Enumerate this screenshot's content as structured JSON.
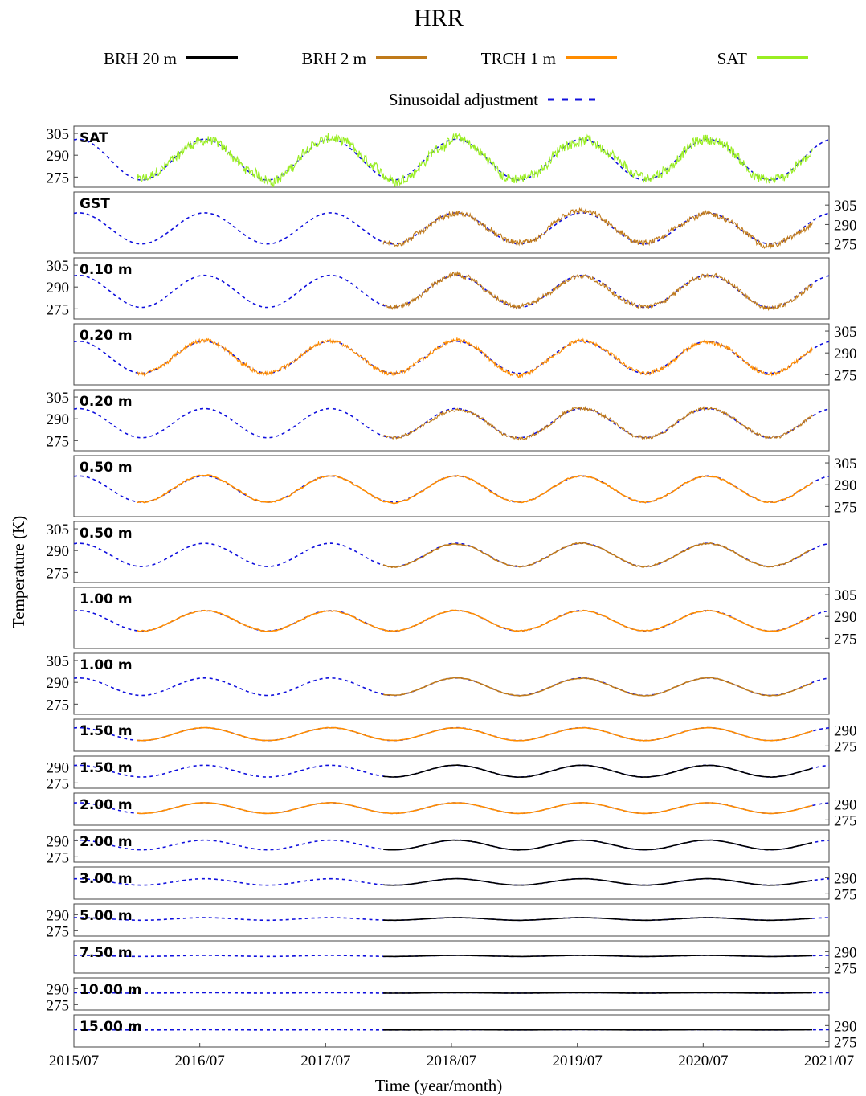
{
  "chart_data": {
    "type": "line",
    "title": "HRR",
    "xlabel": "Time (year/month)",
    "ylabel": "Temperature (K)",
    "x_ticks": [
      "2015/07",
      "2016/07",
      "2017/07",
      "2018/07",
      "2019/07",
      "2020/07",
      "2021/07"
    ],
    "xlim": [
      "2015-07-01",
      "2021-07-01"
    ],
    "legend": {
      "placement": "top",
      "entries": [
        {
          "name": "BRH 20 m",
          "color": "#000000",
          "style": "solid"
        },
        {
          "name": "BRH 2 m",
          "color": "#c07a1a",
          "style": "solid"
        },
        {
          "name": "TRCH 1 m",
          "color": "#ff8c00",
          "style": "solid"
        },
        {
          "name": "SAT",
          "color": "#99ee22",
          "style": "solid"
        },
        {
          "name": "Sinusoidal adjustment",
          "color": "#1010dd",
          "style": "dashed"
        }
      ]
    },
    "panels": [
      {
        "label": "SAT",
        "series": "SAT",
        "start": "2016-01-01",
        "end": "2021-05-15",
        "amp": 14,
        "mean": 287,
        "noise": 4.0,
        "ylim": [
          268,
          310
        ],
        "yticks": [
          275,
          290,
          305
        ],
        "yaxis": "left"
      },
      {
        "label": "GST",
        "series": "BRH 2 m",
        "start": "2017-12-15",
        "end": "2021-05-15",
        "amp": 12,
        "mean": 287,
        "noise": 2.5,
        "ylim": [
          268,
          315
        ],
        "yticks": [
          275,
          290,
          305
        ],
        "yaxis": "right"
      },
      {
        "label": "0.10 m",
        "series": "BRH 2 m",
        "start": "2017-12-15",
        "end": "2021-05-15",
        "amp": 11,
        "mean": 287,
        "noise": 1.8,
        "ylim": [
          268,
          310
        ],
        "yticks": [
          275,
          290,
          305
        ],
        "yaxis": "left"
      },
      {
        "label": "0.20 m",
        "series": "TRCH 1 m",
        "start": "2016-01-01",
        "end": "2021-05-15",
        "amp": 11,
        "mean": 287,
        "noise": 1.5,
        "ylim": [
          268,
          310
        ],
        "yticks": [
          275,
          290,
          305
        ],
        "yaxis": "right"
      },
      {
        "label": "0.20 m",
        "series": "BRH 2 m",
        "start": "2017-12-15",
        "end": "2021-05-15",
        "amp": 10,
        "mean": 287,
        "noise": 1.3,
        "ylim": [
          268,
          310
        ],
        "yticks": [
          275,
          290,
          305
        ],
        "yaxis": "left"
      },
      {
        "label": "0.50 m",
        "series": "TRCH 1 m",
        "start": "2016-01-01",
        "end": "2021-05-15",
        "amp": 9,
        "mean": 287,
        "noise": 0.6,
        "ylim": [
          268,
          310
        ],
        "yticks": [
          275,
          290,
          305
        ],
        "yaxis": "right"
      },
      {
        "label": "0.50 m",
        "series": "BRH 2 m",
        "start": "2017-12-15",
        "end": "2021-05-15",
        "amp": 8,
        "mean": 287,
        "noise": 0.5,
        "ylim": [
          268,
          310
        ],
        "yticks": [
          275,
          290,
          305
        ],
        "yaxis": "left"
      },
      {
        "label": "1.00 m",
        "series": "TRCH 1 m",
        "start": "2016-01-01",
        "end": "2021-05-15",
        "amp": 7,
        "mean": 287,
        "noise": 0.4,
        "ylim": [
          268,
          310
        ],
        "yticks": [
          275,
          290,
          305
        ],
        "yaxis": "right"
      },
      {
        "label": "1.00 m",
        "series": "BRH 2 m",
        "start": "2017-12-15",
        "end": "2021-05-15",
        "amp": 6,
        "mean": 287,
        "noise": 0.3,
        "ylim": [
          268,
          310
        ],
        "yticks": [
          275,
          290,
          305
        ],
        "yaxis": "left"
      },
      {
        "label": "1.50 m",
        "series": "TRCH 1 m",
        "start": "2016-01-01",
        "end": "2021-05-15",
        "amp": 6,
        "mean": 286,
        "noise": 0.2,
        "ylim": [
          270,
          300
        ],
        "yticks": [
          275,
          290
        ],
        "yaxis": "right"
      },
      {
        "label": "1.50 m",
        "series": "BRH 20 m",
        "start": "2017-12-15",
        "end": "2021-05-15",
        "amp": 5.5,
        "mean": 286,
        "noise": 0.2,
        "ylim": [
          270,
          300
        ],
        "yticks": [
          275,
          290
        ],
        "yaxis": "left"
      },
      {
        "label": "2.00 m",
        "series": "TRCH 1 m",
        "start": "2016-01-01",
        "end": "2021-05-15",
        "amp": 5,
        "mean": 286,
        "noise": 0.15,
        "ylim": [
          270,
          300
        ],
        "yticks": [
          275,
          290
        ],
        "yaxis": "right"
      },
      {
        "label": "2.00 m",
        "series": "BRH 20 m",
        "start": "2017-12-15",
        "end": "2021-05-15",
        "amp": 4.5,
        "mean": 286,
        "noise": 0.15,
        "ylim": [
          270,
          300
        ],
        "yticks": [
          275,
          290
        ],
        "yaxis": "left"
      },
      {
        "label": "3.00 m",
        "series": "BRH 20 m",
        "start": "2017-12-15",
        "end": "2021-05-15",
        "amp": 3,
        "mean": 286,
        "noise": 0.1,
        "ylim": [
          270,
          300
        ],
        "yticks": [
          275,
          290
        ],
        "yaxis": "right"
      },
      {
        "label": "5.00 m",
        "series": "BRH 20 m",
        "start": "2017-12-15",
        "end": "2021-05-15",
        "amp": 1.2,
        "mean": 286,
        "noise": 0.08,
        "ylim": [
          270,
          300
        ],
        "yticks": [
          275,
          290
        ],
        "yaxis": "left"
      },
      {
        "label": "7.50 m",
        "series": "BRH 20 m",
        "start": "2017-12-15",
        "end": "2021-05-15",
        "amp": 0.5,
        "mean": 286,
        "noise": 0.05,
        "ylim": [
          270,
          300
        ],
        "yticks": [
          275,
          290
        ],
        "yaxis": "right"
      },
      {
        "label": "10.00 m",
        "series": "BRH 20 m",
        "start": "2017-12-15",
        "end": "2021-05-15",
        "amp": 0.2,
        "mean": 286,
        "noise": 0.05,
        "ylim": [
          270,
          300
        ],
        "yticks": [
          275,
          290
        ],
        "yaxis": "left"
      },
      {
        "label": "15.00 m",
        "series": "BRH 20 m",
        "start": "2017-12-15",
        "end": "2021-05-15",
        "amp": 0.1,
        "mean": 286,
        "noise": 0.05,
        "ylim": [
          270,
          300
        ],
        "yticks": [
          275,
          290
        ],
        "yaxis": "right"
      }
    ]
  }
}
